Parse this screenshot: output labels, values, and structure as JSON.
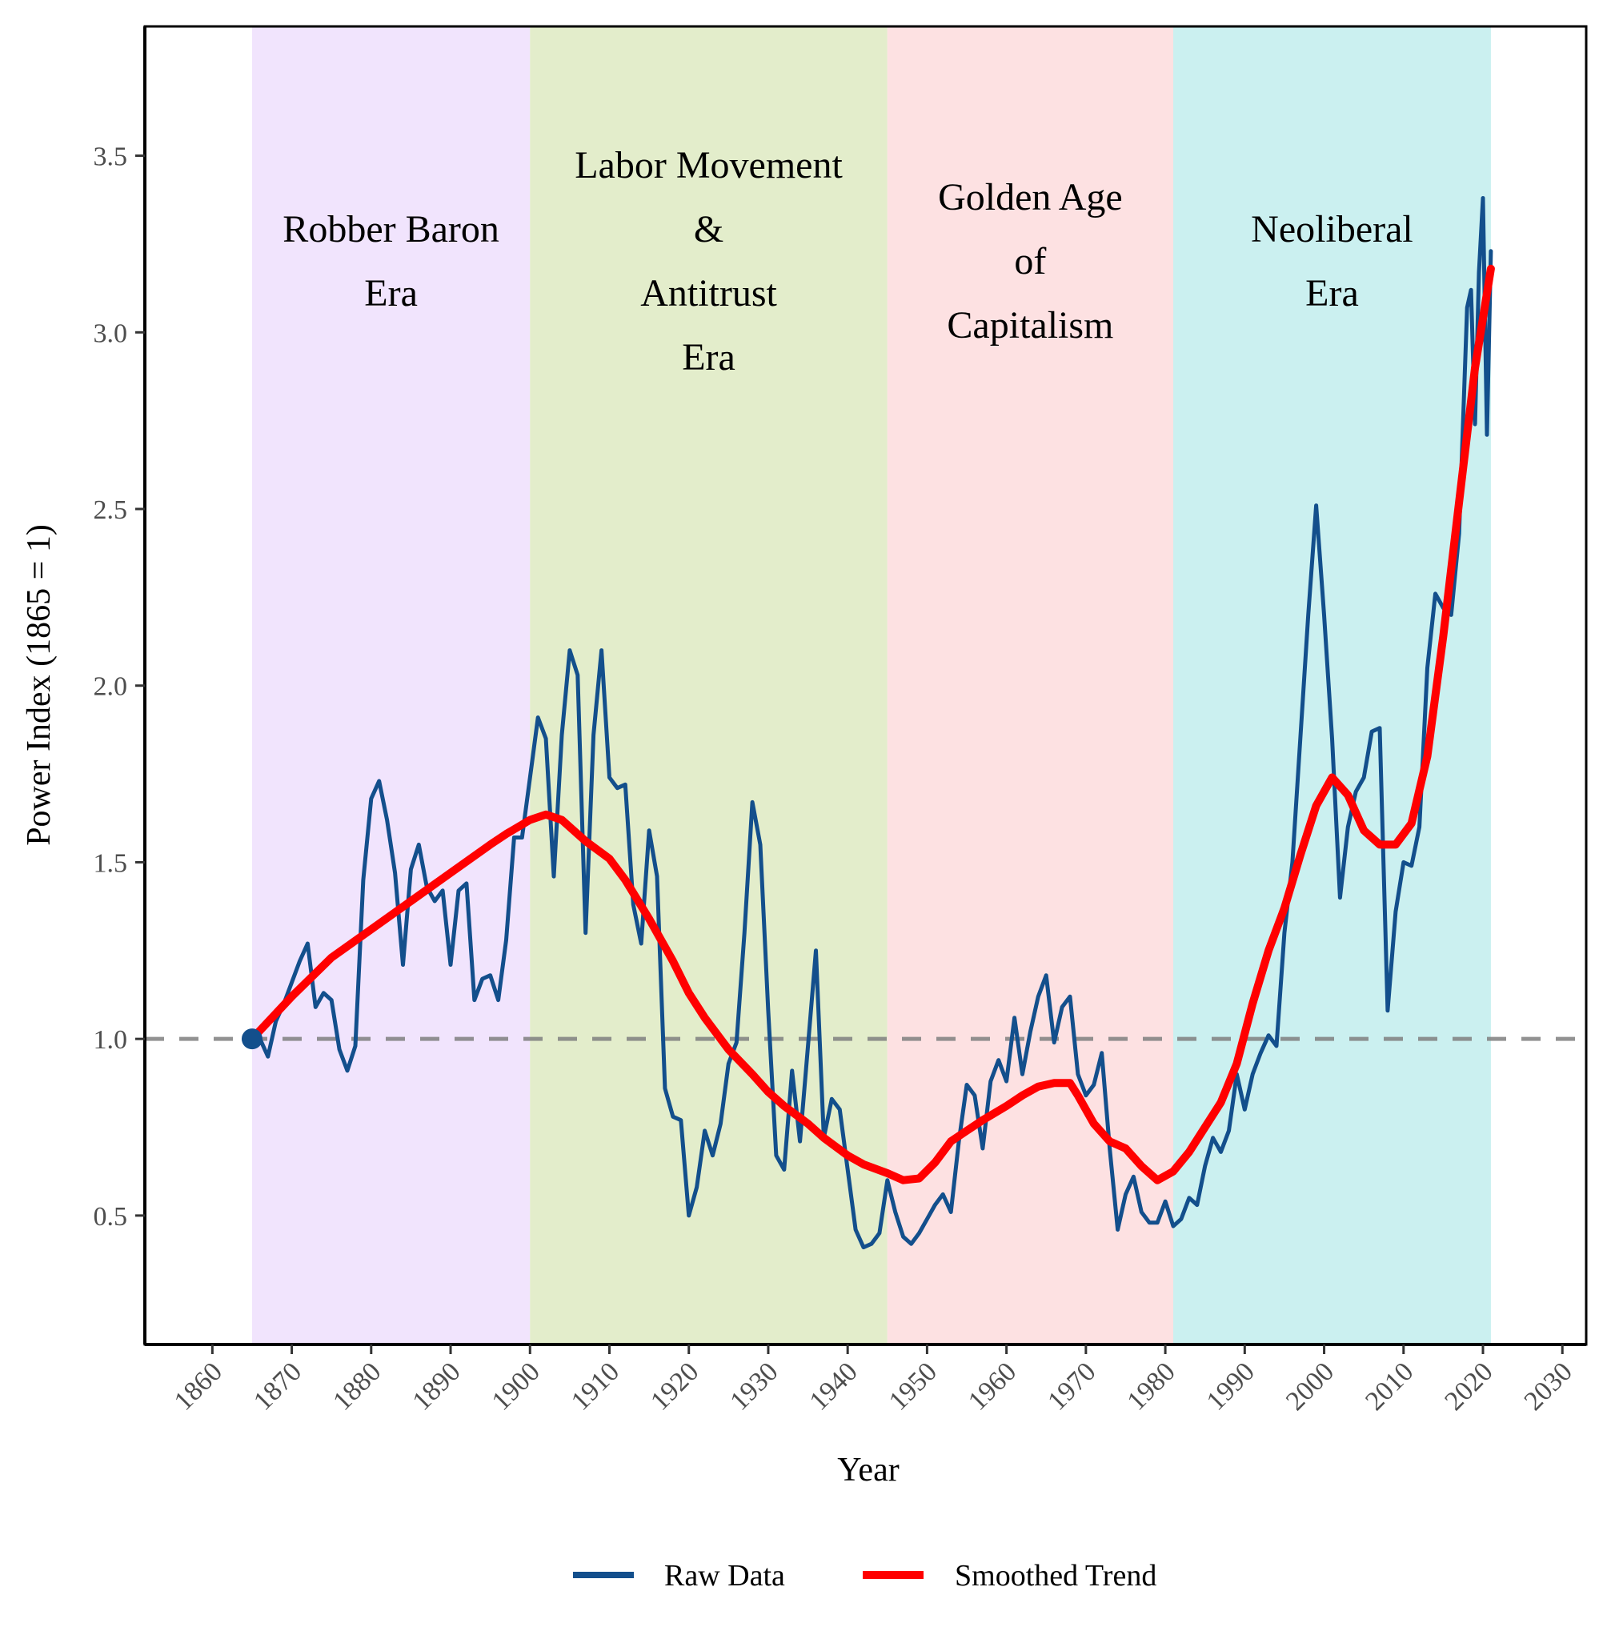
{
  "chart_data": {
    "type": "line",
    "title": "",
    "xlabel": "Year",
    "ylabel": "Power Index (1865 = 1)",
    "xlim": [
      1851.5,
      2033
    ],
    "ylim": [
      0.135,
      3.866
    ],
    "x_ticks": [
      1860,
      1870,
      1880,
      1890,
      1900,
      1910,
      1920,
      1930,
      1940,
      1950,
      1960,
      1970,
      1980,
      1990,
      2000,
      2010,
      2020,
      2030
    ],
    "y_ticks": [
      0.5,
      1.0,
      1.5,
      2.0,
      2.5,
      3.0,
      3.5
    ],
    "y_tick_labels": [
      "0.5",
      "1.0",
      "1.5",
      "2.0",
      "2.5",
      "3.0",
      "3.5"
    ],
    "grid": false,
    "reference_line": {
      "y": 1.0,
      "style": "dashed",
      "color": "#808080"
    },
    "base_point": {
      "x": 1865,
      "y": 1.0,
      "color": "#134f8c"
    },
    "eras": [
      {
        "label_lines": [
          "Robber Baron",
          "Era"
        ],
        "start": 1865,
        "end": 1900,
        "color": "#f1e4fd"
      },
      {
        "label_lines": [
          "Labor Movement",
          "&",
          "Antitrust",
          "Era"
        ],
        "start": 1900,
        "end": 1945,
        "color": "#e3edcb"
      },
      {
        "label_lines": [
          "Golden Age",
          "of",
          "Capitalism"
        ],
        "start": 1945,
        "end": 1981,
        "color": "#fde1e2"
      },
      {
        "label_lines": [
          "Neoliberal",
          "Era"
        ],
        "start": 1981,
        "end": 2021,
        "color": "#cbf0f0"
      }
    ],
    "legend": {
      "position": "bottom"
    },
    "series": [
      {
        "name": "Raw Data",
        "color": "#134f8c",
        "points": [
          [
            1865,
            1.0
          ],
          [
            1866,
            1.0
          ],
          [
            1867,
            0.95
          ],
          [
            1868,
            1.05
          ],
          [
            1869,
            1.1
          ],
          [
            1870,
            1.16
          ],
          [
            1871,
            1.22
          ],
          [
            1872,
            1.27
          ],
          [
            1873,
            1.09
          ],
          [
            1874,
            1.13
          ],
          [
            1875,
            1.11
          ],
          [
            1876,
            0.97
          ],
          [
            1877,
            0.91
          ],
          [
            1878,
            0.98
          ],
          [
            1879,
            1.45
          ],
          [
            1880,
            1.68
          ],
          [
            1881,
            1.73
          ],
          [
            1882,
            1.62
          ],
          [
            1883,
            1.47
          ],
          [
            1884,
            1.21
          ],
          [
            1885,
            1.48
          ],
          [
            1886,
            1.55
          ],
          [
            1887,
            1.43
          ],
          [
            1888,
            1.39
          ],
          [
            1889,
            1.42
          ],
          [
            1890,
            1.21
          ],
          [
            1891,
            1.42
          ],
          [
            1892,
            1.44
          ],
          [
            1893,
            1.11
          ],
          [
            1894,
            1.17
          ],
          [
            1895,
            1.18
          ],
          [
            1896,
            1.11
          ],
          [
            1897,
            1.28
          ],
          [
            1898,
            1.57
          ],
          [
            1899,
            1.57
          ],
          [
            1900,
            1.74
          ],
          [
            1901,
            1.91
          ],
          [
            1902,
            1.85
          ],
          [
            1903,
            1.46
          ],
          [
            1904,
            1.86
          ],
          [
            1905,
            2.1
          ],
          [
            1906,
            2.03
          ],
          [
            1907,
            1.3
          ],
          [
            1908,
            1.86
          ],
          [
            1909,
            2.1
          ],
          [
            1910,
            1.74
          ],
          [
            1911,
            1.71
          ],
          [
            1912,
            1.72
          ],
          [
            1913,
            1.38
          ],
          [
            1914,
            1.27
          ],
          [
            1915,
            1.59
          ],
          [
            1916,
            1.46
          ],
          [
            1917,
            0.86
          ],
          [
            1918,
            0.78
          ],
          [
            1919,
            0.77
          ],
          [
            1920,
            0.5
          ],
          [
            1921,
            0.58
          ],
          [
            1922,
            0.74
          ],
          [
            1923,
            0.67
          ],
          [
            1924,
            0.76
          ],
          [
            1925,
            0.93
          ],
          [
            1926,
            0.99
          ],
          [
            1927,
            1.3
          ],
          [
            1928,
            1.67
          ],
          [
            1929,
            1.55
          ],
          [
            1930,
            1.08
          ],
          [
            1931,
            0.67
          ],
          [
            1932,
            0.63
          ],
          [
            1933,
            0.91
          ],
          [
            1934,
            0.71
          ],
          [
            1935,
            0.98
          ],
          [
            1936,
            1.25
          ],
          [
            1937,
            0.72
          ],
          [
            1938,
            0.83
          ],
          [
            1939,
            0.8
          ],
          [
            1940,
            0.63
          ],
          [
            1941,
            0.46
          ],
          [
            1942,
            0.41
          ],
          [
            1943,
            0.42
          ],
          [
            1944,
            0.45
          ],
          [
            1945,
            0.6
          ],
          [
            1946,
            0.51
          ],
          [
            1947,
            0.44
          ],
          [
            1948,
            0.42
          ],
          [
            1949,
            0.45
          ],
          [
            1950,
            0.49
          ],
          [
            1951,
            0.53
          ],
          [
            1952,
            0.56
          ],
          [
            1953,
            0.51
          ],
          [
            1954,
            0.71
          ],
          [
            1955,
            0.87
          ],
          [
            1956,
            0.84
          ],
          [
            1957,
            0.69
          ],
          [
            1958,
            0.88
          ],
          [
            1959,
            0.94
          ],
          [
            1960,
            0.88
          ],
          [
            1961,
            1.06
          ],
          [
            1962,
            0.9
          ],
          [
            1963,
            1.02
          ],
          [
            1964,
            1.12
          ],
          [
            1965,
            1.18
          ],
          [
            1966,
            0.99
          ],
          [
            1967,
            1.09
          ],
          [
            1968,
            1.12
          ],
          [
            1969,
            0.9
          ],
          [
            1970,
            0.84
          ],
          [
            1971,
            0.87
          ],
          [
            1972,
            0.96
          ],
          [
            1973,
            0.69
          ],
          [
            1974,
            0.46
          ],
          [
            1975,
            0.56
          ],
          [
            1976,
            0.61
          ],
          [
            1977,
            0.51
          ],
          [
            1978,
            0.48
          ],
          [
            1979,
            0.48
          ],
          [
            1980,
            0.54
          ],
          [
            1981,
            0.47
          ],
          [
            1982,
            0.49
          ],
          [
            1983,
            0.55
          ],
          [
            1984,
            0.53
          ],
          [
            1985,
            0.64
          ],
          [
            1986,
            0.72
          ],
          [
            1987,
            0.68
          ],
          [
            1988,
            0.74
          ],
          [
            1989,
            0.9
          ],
          [
            1990,
            0.8
          ],
          [
            1991,
            0.9
          ],
          [
            1992,
            0.96
          ],
          [
            1993,
            1.01
          ],
          [
            1994,
            0.98
          ],
          [
            1995,
            1.3
          ],
          [
            1996,
            1.5
          ],
          [
            1997,
            1.85
          ],
          [
            1998,
            2.2
          ],
          [
            1999,
            2.51
          ],
          [
            2000,
            2.2
          ],
          [
            2001,
            1.85
          ],
          [
            2002,
            1.4
          ],
          [
            2003,
            1.6
          ],
          [
            2004,
            1.7
          ],
          [
            2005,
            1.74
          ],
          [
            2006,
            1.87
          ],
          [
            2007,
            1.88
          ],
          [
            2008,
            1.08
          ],
          [
            2009,
            1.36
          ],
          [
            2010,
            1.5
          ],
          [
            2011,
            1.49
          ],
          [
            2012,
            1.6
          ],
          [
            2013,
            2.05
          ],
          [
            2014,
            2.26
          ],
          [
            2015,
            2.22
          ],
          [
            2016,
            2.2
          ],
          [
            2017,
            2.43
          ],
          [
            2018,
            3.07
          ],
          [
            2018.5,
            3.12
          ],
          [
            2019,
            2.74
          ],
          [
            2019.5,
            3.17
          ],
          [
            2020,
            3.38
          ],
          [
            2020.5,
            2.71
          ],
          [
            2021,
            3.23
          ]
        ]
      },
      {
        "name": "Smoothed Trend",
        "color": "#ff0000",
        "points": [
          [
            1865,
            1.0
          ],
          [
            1870,
            1.12
          ],
          [
            1875,
            1.23
          ],
          [
            1880,
            1.31
          ],
          [
            1885,
            1.39
          ],
          [
            1890,
            1.47
          ],
          [
            1895,
            1.55
          ],
          [
            1897,
            1.58
          ],
          [
            1900,
            1.62
          ],
          [
            1902,
            1.635
          ],
          [
            1904,
            1.62
          ],
          [
            1907,
            1.56
          ],
          [
            1910,
            1.51
          ],
          [
            1912,
            1.45
          ],
          [
            1915,
            1.34
          ],
          [
            1918,
            1.22
          ],
          [
            1920,
            1.13
          ],
          [
            1922,
            1.06
          ],
          [
            1925,
            0.97
          ],
          [
            1928,
            0.9
          ],
          [
            1930,
            0.85
          ],
          [
            1932,
            0.81
          ],
          [
            1935,
            0.76
          ],
          [
            1937,
            0.72
          ],
          [
            1940,
            0.67
          ],
          [
            1942,
            0.645
          ],
          [
            1945,
            0.62
          ],
          [
            1947,
            0.6
          ],
          [
            1949,
            0.605
          ],
          [
            1951,
            0.65
          ],
          [
            1953,
            0.71
          ],
          [
            1955,
            0.74
          ],
          [
            1957,
            0.77
          ],
          [
            1960,
            0.81
          ],
          [
            1962,
            0.84
          ],
          [
            1964,
            0.865
          ],
          [
            1966,
            0.875
          ],
          [
            1968,
            0.875
          ],
          [
            1969,
            0.84
          ],
          [
            1971,
            0.76
          ],
          [
            1973,
            0.71
          ],
          [
            1975,
            0.69
          ],
          [
            1977,
            0.64
          ],
          [
            1979,
            0.6
          ],
          [
            1981,
            0.625
          ],
          [
            1983,
            0.68
          ],
          [
            1985,
            0.75
          ],
          [
            1987,
            0.82
          ],
          [
            1989,
            0.93
          ],
          [
            1991,
            1.1
          ],
          [
            1993,
            1.25
          ],
          [
            1995,
            1.37
          ],
          [
            1997,
            1.52
          ],
          [
            1999,
            1.66
          ],
          [
            2001,
            1.74
          ],
          [
            2003,
            1.69
          ],
          [
            2005,
            1.59
          ],
          [
            2007,
            1.55
          ],
          [
            2009,
            1.55
          ],
          [
            2011,
            1.61
          ],
          [
            2013,
            1.8
          ],
          [
            2015,
            2.14
          ],
          [
            2017,
            2.52
          ],
          [
            2019,
            2.9
          ],
          [
            2021,
            3.18
          ]
        ]
      }
    ]
  }
}
